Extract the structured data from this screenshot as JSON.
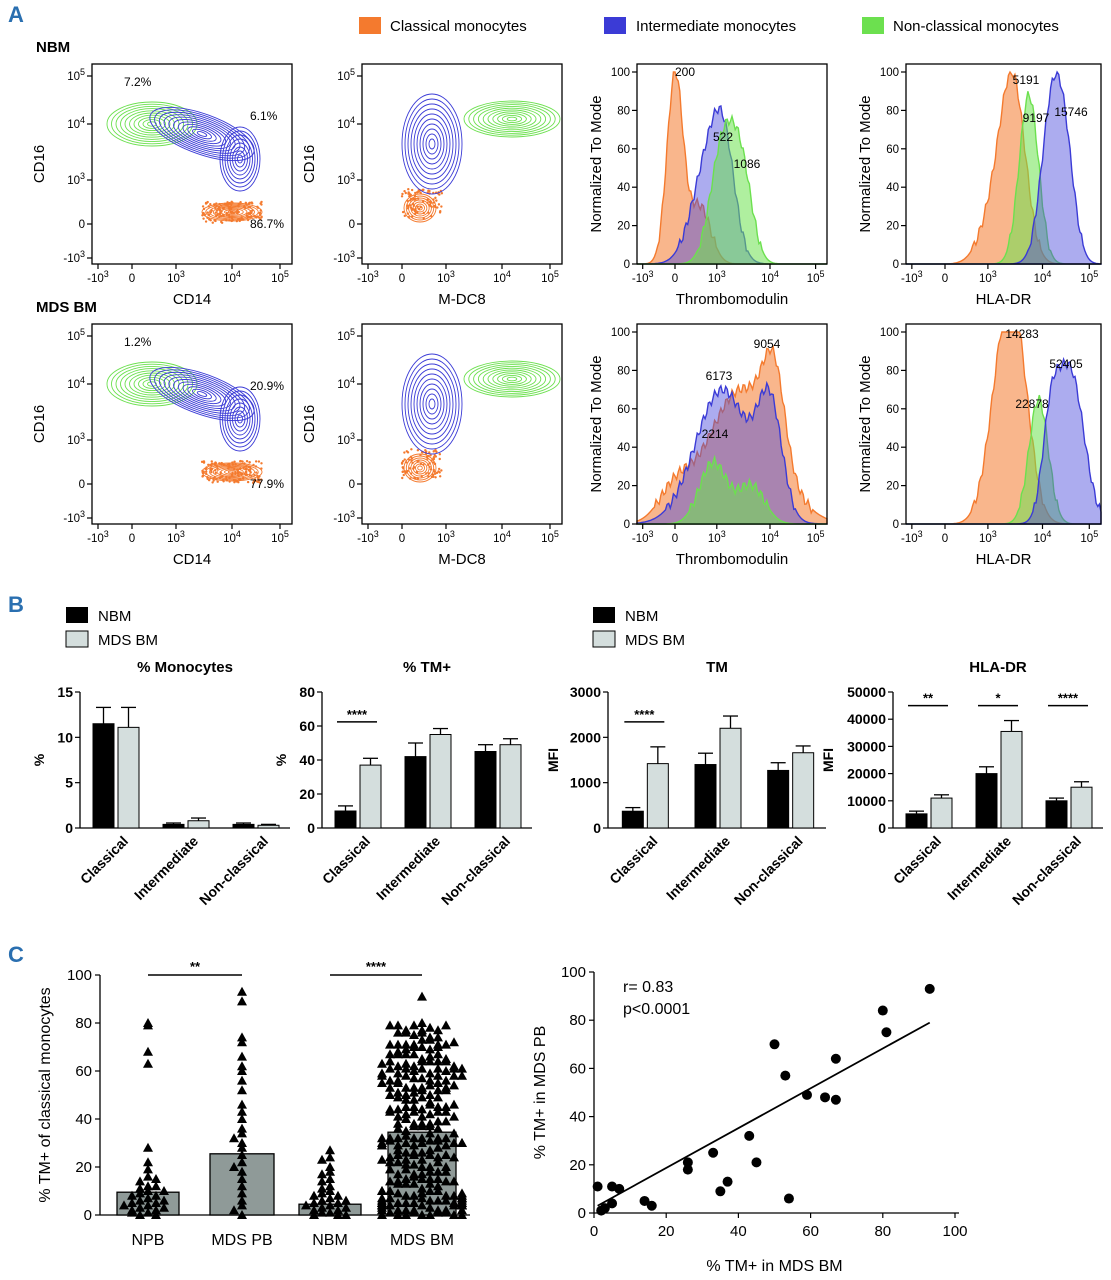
{
  "panels": {
    "a": "A",
    "b": "B",
    "c": "C"
  },
  "legend_A": {
    "items": [
      {
        "label": "Classical monocytes",
        "color": "#f47a2e"
      },
      {
        "label": "Intermediate monocytes",
        "color": "#3b3bd6"
      },
      {
        "label": "Non-classical monocytes",
        "color": "#6ce04f"
      }
    ]
  },
  "rows_A": [
    {
      "label": "NBM",
      "contour1": {
        "xlabel": "CD14",
        "ylabel": "CD16",
        "pcts": [
          "7.2%",
          "6.1%",
          "86.7%"
        ]
      },
      "contour2": {
        "xlabel": "M-DC8",
        "ylabel": "CD16"
      },
      "hist1": {
        "xlabel": "Thrombomodulin",
        "ylabel": "Normalized To Mode",
        "mfi": [
          "200",
          "522",
          "1086"
        ]
      },
      "hist2": {
        "xlabel": "HLA-DR",
        "ylabel": "Normalized To Mode",
        "mfi": [
          "5191",
          "9197",
          "15746"
        ]
      }
    },
    {
      "label": "MDS BM",
      "contour1": {
        "xlabel": "CD14",
        "ylabel": "CD16",
        "pcts": [
          "1.2%",
          "20.9%",
          "77.9%"
        ]
      },
      "contour2": {
        "xlabel": "M-DC8",
        "ylabel": "CD16"
      },
      "hist1": {
        "xlabel": "Thrombomodulin",
        "ylabel": "Normalized To Mode",
        "mfi": [
          "9054",
          "6173",
          "2214"
        ]
      },
      "hist2": {
        "xlabel": "HLA-DR",
        "ylabel": "Normalized To Mode",
        "mfi": [
          "14283",
          "52405",
          "22878"
        ]
      }
    }
  ],
  "flow_ticks": {
    "log": [
      "-10^3",
      "0",
      "10^3",
      "10^4",
      "10^5"
    ],
    "hist_y": [
      "0",
      "20",
      "40",
      "60",
      "80",
      "100"
    ]
  },
  "legend_B": [
    {
      "label": "NBM",
      "color": "#000000"
    },
    {
      "label": "MDS BM",
      "color": "#d4dedd"
    }
  ],
  "chart_data": [
    {
      "type": "bar",
      "title": "% Monocytes",
      "ylabel": "%",
      "categories": [
        "Classical",
        "Intermediate",
        "Non-classical"
      ],
      "series": [
        {
          "name": "NBM",
          "values": [
            11.5,
            0.4,
            0.4
          ],
          "errors": [
            1.8,
            0.15,
            0.15
          ]
        },
        {
          "name": "MDS BM",
          "values": [
            11.1,
            0.8,
            0.3
          ],
          "errors": [
            2.2,
            0.3,
            0.1
          ]
        }
      ],
      "ylim": [
        0,
        15
      ],
      "yticks": [
        0,
        5,
        10,
        15
      ],
      "significance": []
    },
    {
      "type": "bar",
      "title": "% TM+",
      "ylabel": "%",
      "categories": [
        "Classical",
        "Intermediate",
        "Non-classical"
      ],
      "series": [
        {
          "name": "NBM",
          "values": [
            10,
            42,
            45
          ],
          "errors": [
            3,
            8,
            4
          ]
        },
        {
          "name": "MDS BM",
          "values": [
            37,
            55,
            49
          ],
          "errors": [
            4,
            3.5,
            3.5
          ]
        }
      ],
      "ylim": [
        0,
        80
      ],
      "yticks": [
        0,
        20,
        40,
        60,
        80
      ],
      "significance": [
        {
          "category": "Classical",
          "label": "****"
        }
      ]
    },
    {
      "type": "bar",
      "title": "TM",
      "ylabel": "MFI",
      "categories": [
        "Classical",
        "Intermediate",
        "Non-classical"
      ],
      "series": [
        {
          "name": "NBM",
          "values": [
            370,
            1400,
            1270
          ],
          "errors": [
            80,
            250,
            170
          ]
        },
        {
          "name": "MDS BM",
          "values": [
            1420,
            2200,
            1660
          ],
          "errors": [
            370,
            270,
            150
          ]
        }
      ],
      "ylim": [
        0,
        3000
      ],
      "yticks": [
        0,
        1000,
        2000,
        3000
      ],
      "significance": [
        {
          "category": "Classical",
          "label": "****"
        }
      ]
    },
    {
      "type": "bar",
      "title": "HLA-DR",
      "ylabel": "MFI",
      "categories": [
        "Classical",
        "Intermediate",
        "Non-classical"
      ],
      "series": [
        {
          "name": "NBM",
          "values": [
            5200,
            20000,
            10000
          ],
          "errors": [
            1000,
            2500,
            1000
          ]
        },
        {
          "name": "MDS BM",
          "values": [
            11000,
            35500,
            15000
          ],
          "errors": [
            1200,
            4000,
            2000
          ]
        }
      ],
      "ylim": [
        0,
        50000
      ],
      "yticks": [
        0,
        10000,
        20000,
        30000,
        40000,
        50000
      ],
      "significance": [
        {
          "category": "Classical",
          "label": "**"
        },
        {
          "category": "Intermediate",
          "label": "*"
        },
        {
          "category": "Non-classical",
          "label": "****"
        }
      ]
    },
    {
      "type": "bar",
      "title": "",
      "ylabel": "% TM+ of classical monocytes",
      "categories": [
        "NPB",
        "MDS PB",
        "NBM",
        "MDS BM"
      ],
      "values": [
        9.5,
        25.5,
        4.5,
        34.5
      ],
      "ylim": [
        0,
        100
      ],
      "yticks": [
        0,
        20,
        40,
        60,
        80,
        100
      ],
      "significance": [
        {
          "from": "NPB",
          "to": "MDS PB",
          "label": "**"
        },
        {
          "from": "NBM",
          "to": "MDS BM",
          "label": "****"
        }
      ],
      "points": {
        "NPB": [
          80,
          79,
          68,
          63,
          28,
          22,
          19,
          16,
          14,
          12,
          11,
          10,
          9,
          8,
          7,
          6,
          5,
          4,
          3,
          2,
          1,
          0,
          0,
          1,
          2,
          3,
          4,
          5,
          6,
          8,
          10,
          12,
          15
        ],
        "MDS PB": [
          93,
          89,
          74,
          72,
          66,
          62,
          60,
          56,
          52,
          46,
          43,
          40,
          36,
          34,
          32,
          30,
          28,
          25,
          22,
          20,
          18,
          15,
          12,
          9,
          6,
          4,
          2,
          0
        ],
        "NBM": [
          27,
          24,
          23,
          20,
          18,
          17,
          15,
          14,
          12,
          11,
          10,
          9,
          8,
          7,
          6,
          5,
          5,
          4,
          3,
          2,
          1,
          1,
          0,
          0,
          0,
          2,
          3,
          4,
          6,
          8
        ],
        "MDS BM": {
          "n": 260,
          "min": 0,
          "max": 91
        }
      }
    },
    {
      "type": "scatter",
      "title": "",
      "xlabel": "% TM+ in MDS BM",
      "ylabel": "% TM+ in MDS PB",
      "xlim": [
        0,
        100
      ],
      "ylim": [
        0,
        100
      ],
      "xticks": [
        0,
        20,
        40,
        60,
        80,
        100
      ],
      "yticks": [
        0,
        20,
        40,
        60,
        80,
        100
      ],
      "points": [
        [
          1,
          11
        ],
        [
          2,
          1
        ],
        [
          3,
          2
        ],
        [
          5,
          4
        ],
        [
          5,
          11
        ],
        [
          7,
          10
        ],
        [
          14,
          5
        ],
        [
          16,
          3
        ],
        [
          26,
          21
        ],
        [
          26,
          18
        ],
        [
          33,
          25
        ],
        [
          35,
          9
        ],
        [
          37,
          13
        ],
        [
          43,
          32
        ],
        [
          45,
          21
        ],
        [
          50,
          70
        ],
        [
          53,
          57
        ],
        [
          54,
          6
        ],
        [
          59,
          49
        ],
        [
          64,
          48
        ],
        [
          67,
          64
        ],
        [
          67,
          47
        ],
        [
          80,
          84
        ],
        [
          81,
          75
        ],
        [
          93,
          93
        ]
      ],
      "fit": {
        "x0": 1,
        "y0": 3,
        "x1": 93,
        "y1": 79
      },
      "annotations": [
        "r= 0.83",
        "p<0.0001"
      ]
    }
  ]
}
